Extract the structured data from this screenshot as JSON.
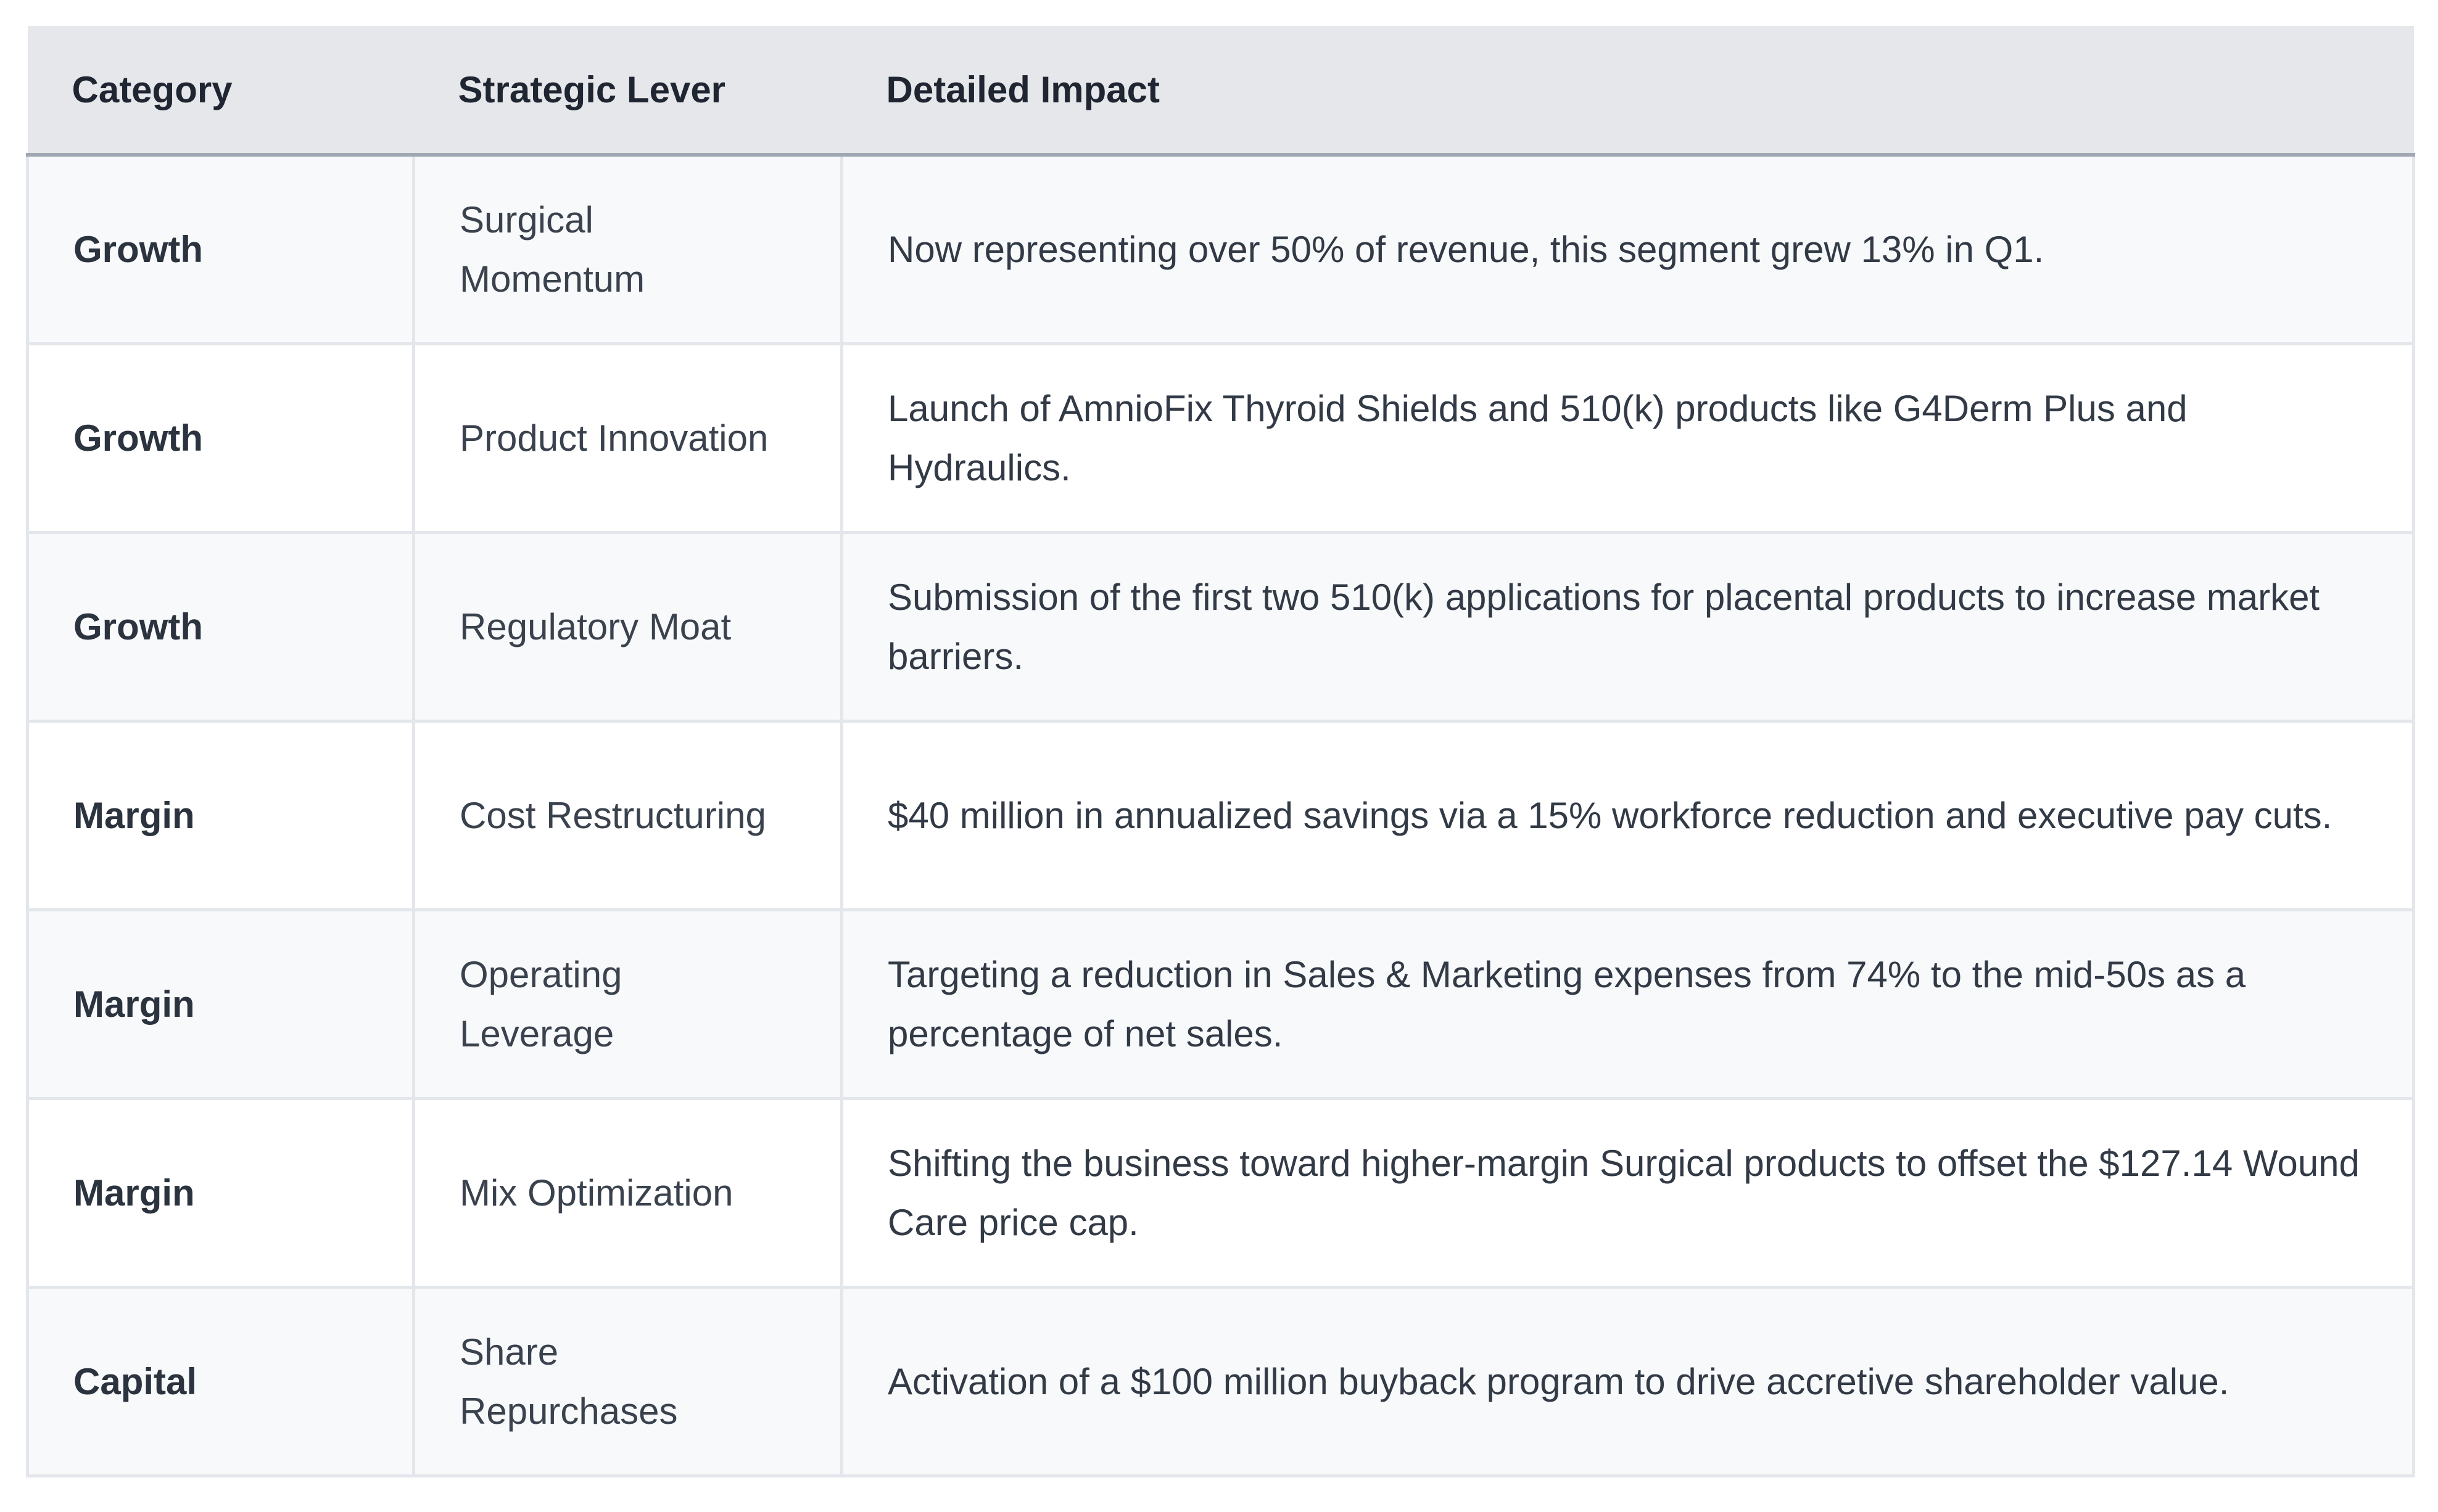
{
  "table": {
    "headers": [
      "Category",
      "Strategic Lever",
      "Detailed Impact"
    ],
    "rows": [
      {
        "category": "Growth",
        "lever": "Surgical Momentum",
        "impact": "Now representing over 50% of revenue, this segment grew 13% in Q1."
      },
      {
        "category": "Growth",
        "lever": "Product Innovation",
        "impact": "Launch of AmnioFix Thyroid Shields and 510(k) products like G4Derm Plus and Hydraulics."
      },
      {
        "category": "Growth",
        "lever": "Regulatory Moat",
        "impact": "Submission of the first two 510(k) applications for placental products to increase market barriers."
      },
      {
        "category": "Margin",
        "lever": "Cost Restructuring",
        "impact": "$40 million in annualized savings via a 15% workforce reduction and executive pay cuts."
      },
      {
        "category": "Margin",
        "lever": "Operating Leverage",
        "impact": "Targeting a reduction in Sales & Marketing expenses from 74% to the mid-50s as a percentage of net sales."
      },
      {
        "category": "Margin",
        "lever": "Mix Optimization",
        "impact": "Shifting the business toward higher-margin Surgical products to offset the $127.14 Wound Care price cap."
      },
      {
        "category": "Capital",
        "lever": "Share Repurchases",
        "impact": "Activation of a $100 million buyback program to drive accretive shareholder value."
      }
    ]
  }
}
